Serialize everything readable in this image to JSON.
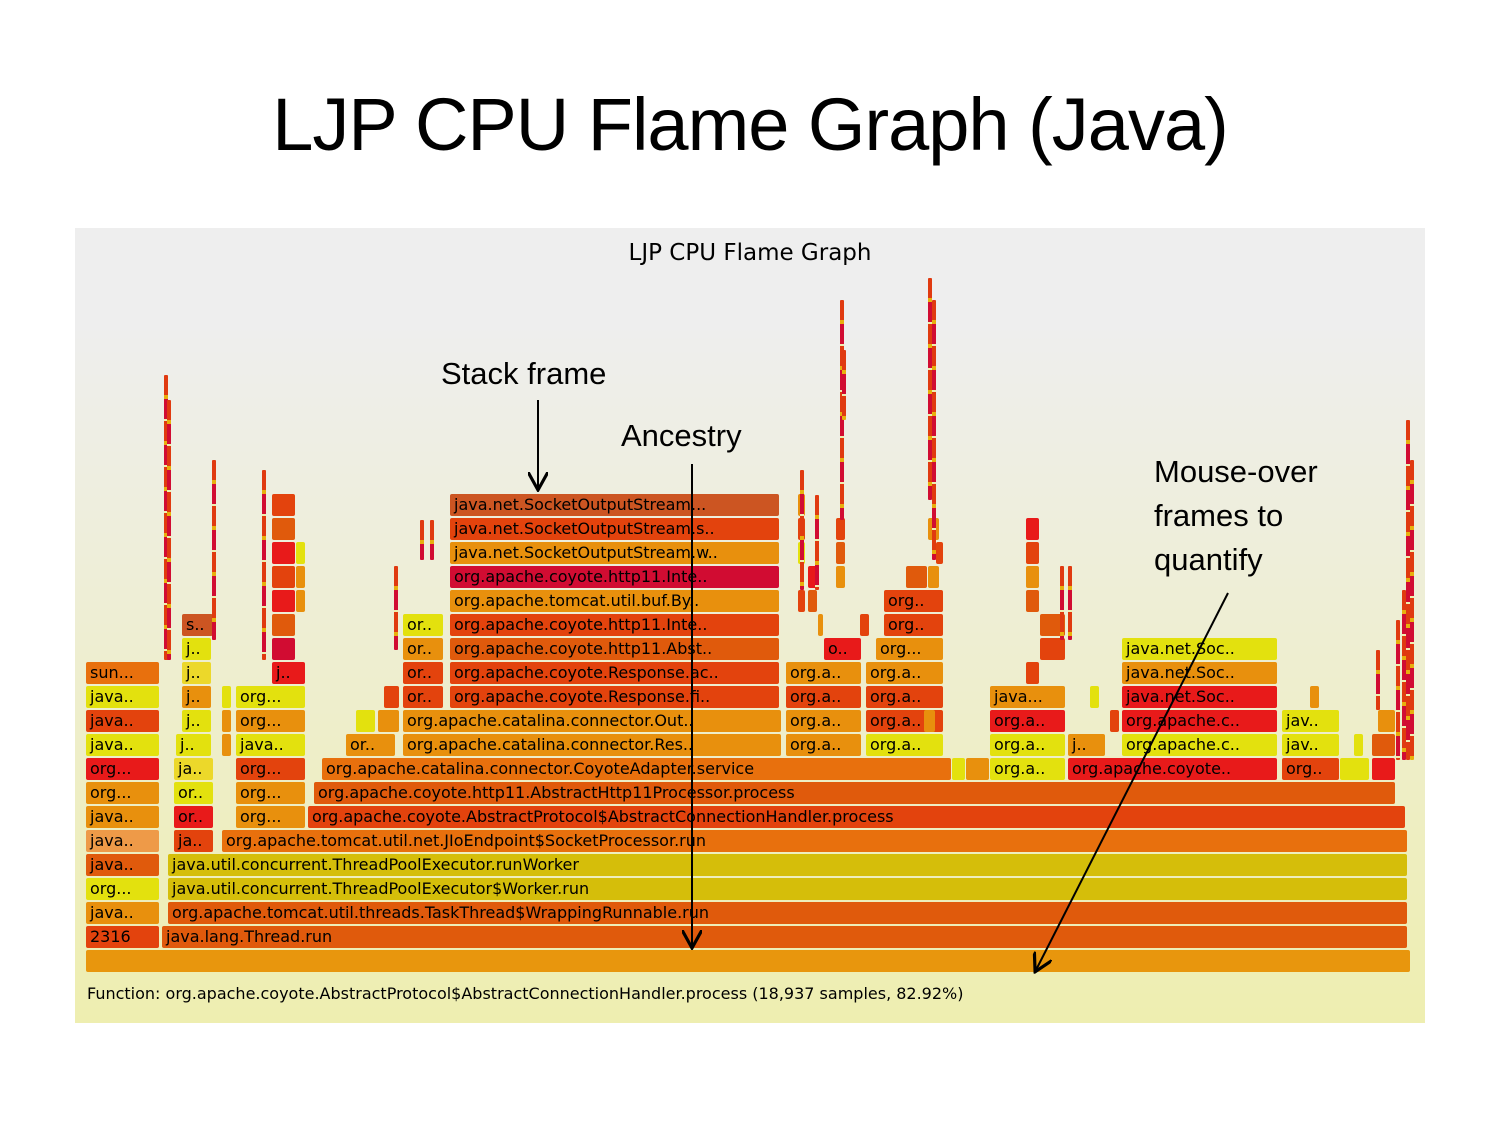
{
  "slide": {
    "title": "LJP CPU Flame Graph (Java)"
  },
  "graph": {
    "title": "LJP CPU Flame Graph",
    "status": "Function: org.apache.coyote.AbstractProtocol$AbstractConnectionHandler.process (18,937 samples, 82.92%)",
    "frames": [
      "java.net.SocketOutputStream...",
      "java.net.SocketOutputStream.s..",
      "java.net.SocketOutputStream.w..",
      "org.apache.coyote.http11.Inte..",
      "org.apache.tomcat.util.buf.By..",
      "org.apache.coyote.http11.Inte..",
      "org.apache.coyote.http11.Abst..",
      "org.apache.coyote.Response.ac..",
      "org.apache.coyote.Response.fi..",
      "org.apache.catalina.connector.Out..",
      "org.apache.catalina.connector.Res..",
      "org.apache.catalina.connector.CoyoteAdapter.service",
      "org.apache.coyote.http11.AbstractHttp11Processor.process",
      "org.apache.coyote.AbstractProtocol$AbstractConnectionHandler.process",
      "org.apache.tomcat.util.net.JIoEndpoint$SocketProcessor.run",
      "java.util.concurrent.ThreadPoolExecutor.runWorker",
      "java.util.concurrent.ThreadPoolExecutor$Worker.run",
      "org.apache.tomcat.util.threads.TaskThread$WrappingRunnable.run",
      "java.lang.Thread.run",
      "sun...",
      "java..",
      "java..",
      "java..",
      "org...",
      "org...",
      "java..",
      "java..",
      "java..",
      "org...",
      "java..",
      "2316",
      "s..",
      "j..",
      "j..",
      "j..",
      "j..",
      "j..",
      "ja..",
      "or..",
      "or..",
      "ja..",
      "j..",
      "org...",
      "org...",
      "java..",
      "org...",
      "org...",
      "org...",
      "or..",
      "or..",
      "or..",
      "or..",
      "or..",
      "org.a..",
      "org.a..",
      "org.a..",
      "org.a..",
      "o..",
      "org...",
      "org..",
      "org..",
      "org.a..",
      "org.a..",
      "org.a..",
      "org.a..",
      "java...",
      "org.a..",
      "org.a..",
      "org.a..",
      "j..",
      "java.net.Soc..",
      "java.net.Soc..",
      "java.net.Soc..",
      "org.apache.c..",
      "org.apache.c..",
      "org.apache.coyote..",
      "jav..",
      "jav..",
      "org.."
    ]
  },
  "annotations": {
    "stack_frame": "Stack frame",
    "ancestry": "Ancestry",
    "mouse_over_1": "Mouse-over",
    "mouse_over_2": "frames to",
    "mouse_over_3": "quantify"
  }
}
